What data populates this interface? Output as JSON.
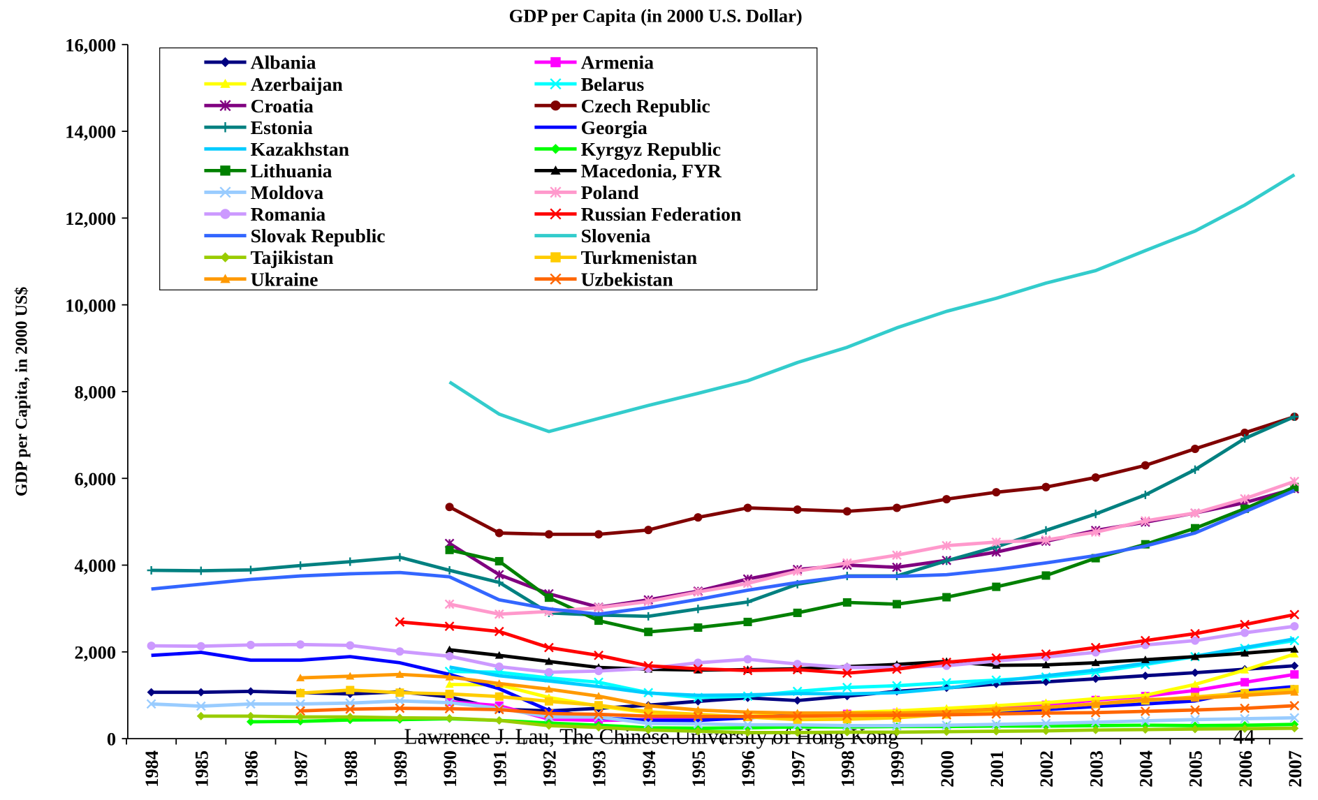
{
  "chart_data": {
    "type": "line",
    "title": "GDP per Capita (in 2000 U.S. Dollar)",
    "y_label": "GDP per Capita, in 2000 US$",
    "categories": [
      "1984",
      "1985",
      "1986",
      "1987",
      "1988",
      "1989",
      "1990",
      "1991",
      "1992",
      "1993",
      "1994",
      "1995",
      "1996",
      "1997",
      "1998",
      "1999",
      "2000",
      "2001",
      "2002",
      "2003",
      "2004",
      "2005",
      "2006",
      "2007"
    ],
    "ylim": [
      0,
      16000
    ],
    "yticks": [
      0,
      {
        "value": 2000,
        "label": "2,000"
      },
      {
        "value": 4000,
        "label": "4,000"
      },
      {
        "value": 6000,
        "label": "6,000"
      },
      {
        "value": 8000,
        "label": "8,000"
      },
      {
        "value": 10000,
        "label": "10,000"
      },
      {
        "value": 12000,
        "label": "12,000"
      },
      {
        "value": 14000,
        "label": "14,000"
      },
      {
        "value": 16000,
        "label": "16,000"
      }
    ],
    "grid": false,
    "legend": "top-left",
    "series": [
      {
        "name": "Albania",
        "color": "#000080",
        "marker": "diamond",
        "values": [
          1070,
          1070,
          1090,
          1060,
          1030,
          1080,
          960,
          680,
          640,
          700,
          770,
          860,
          940,
          880,
          980,
          1090,
          1170,
          1260,
          1310,
          1380,
          1450,
          1520,
          1600,
          1680
        ]
      },
      {
        "name": "Armenia",
        "color": "#ff00ff",
        "marker": "square",
        "values": [
          null,
          null,
          null,
          null,
          null,
          null,
          850,
          760,
          450,
          420,
          440,
          480,
          510,
          530,
          570,
          590,
          630,
          690,
          780,
          890,
          980,
          1110,
          1300,
          1480
        ]
      },
      {
        "name": "Azerbaijan",
        "color": "#ffff00",
        "marker": "triangle",
        "values": [
          null,
          null,
          null,
          null,
          null,
          null,
          1250,
          1240,
          950,
          750,
          600,
          520,
          520,
          550,
          600,
          640,
          700,
          760,
          830,
          920,
          1000,
          1250,
          1580,
          1950
        ]
      },
      {
        "name": "Belarus",
        "color": "#00ffff",
        "marker": "x",
        "values": [
          null,
          null,
          null,
          null,
          null,
          null,
          1550,
          1530,
          1400,
          1300,
          1060,
          950,
          980,
          1090,
          1180,
          1220,
          1290,
          1350,
          1420,
          1530,
          1710,
          1890,
          2080,
          2260
        ]
      },
      {
        "name": "Croatia",
        "color": "#800080",
        "marker": "star",
        "values": [
          null,
          null,
          null,
          null,
          null,
          null,
          4500,
          3780,
          3340,
          3030,
          3200,
          3400,
          3680,
          3900,
          4000,
          3950,
          4110,
          4300,
          4550,
          4800,
          4990,
          5200,
          5440,
          5760
        ]
      },
      {
        "name": "Czech Republic",
        "color": "#800000",
        "marker": "circle",
        "values": [
          null,
          null,
          null,
          null,
          null,
          null,
          5340,
          4740,
          4710,
          4710,
          4810,
          5100,
          5320,
          5280,
          5240,
          5320,
          5520,
          5680,
          5800,
          6020,
          6300,
          6680,
          7050,
          7420
        ]
      },
      {
        "name": "Estonia",
        "color": "#008080",
        "marker": "plus",
        "values": [
          3880,
          3870,
          3890,
          3990,
          4080,
          4180,
          3880,
          3600,
          2900,
          2850,
          2820,
          2990,
          3150,
          3560,
          3750,
          3750,
          4100,
          4420,
          4800,
          5180,
          5620,
          6200,
          6920,
          7420
        ]
      },
      {
        "name": "Georgia",
        "color": "#0000ff",
        "marker": "none",
        "values": [
          1920,
          1990,
          1810,
          1810,
          1890,
          1750,
          1480,
          1150,
          650,
          480,
          420,
          420,
          480,
          540,
          560,
          580,
          600,
          640,
          670,
          740,
          800,
          870,
          1100,
          1200
        ]
      },
      {
        "name": "Kazakhstan",
        "color": "#00ccff",
        "marker": "none",
        "values": [
          null,
          null,
          null,
          null,
          null,
          null,
          1650,
          1450,
          1330,
          1200,
          1050,
          1000,
          1010,
          1040,
          1030,
          1060,
          1160,
          1320,
          1450,
          1580,
          1740,
          1900,
          2100,
          2300
        ]
      },
      {
        "name": "Kyrgyz Republic",
        "color": "#00ff00",
        "marker": "diamond",
        "values": [
          null,
          null,
          390,
          400,
          430,
          440,
          460,
          420,
          360,
          310,
          250,
          240,
          250,
          270,
          270,
          280,
          280,
          290,
          290,
          300,
          310,
          300,
          310,
          330
        ]
      },
      {
        "name": "Lithuania",
        "color": "#008000",
        "marker": "square",
        "values": [
          null,
          null,
          null,
          null,
          null,
          null,
          4350,
          4090,
          3250,
          2720,
          2460,
          2560,
          2690,
          2900,
          3140,
          3100,
          3260,
          3500,
          3760,
          4160,
          4480,
          4850,
          5300,
          5800
        ]
      },
      {
        "name": "Macedonia, FYR",
        "color": "#000000",
        "marker": "triangle",
        "values": [
          null,
          null,
          null,
          null,
          null,
          null,
          2050,
          1920,
          1780,
          1640,
          1600,
          1580,
          1590,
          1610,
          1660,
          1710,
          1780,
          1690,
          1700,
          1750,
          1820,
          1890,
          1970,
          2060
        ]
      },
      {
        "name": "Moldova",
        "color": "#99ccff",
        "marker": "x",
        "values": [
          800,
          750,
          800,
          800,
          820,
          870,
          830,
          700,
          500,
          500,
          350,
          340,
          320,
          320,
          300,
          300,
          310,
          330,
          350,
          380,
          410,
          440,
          460,
          480
        ]
      },
      {
        "name": "Poland",
        "color": "#ff99cc",
        "marker": "star",
        "values": [
          null,
          null,
          null,
          null,
          null,
          null,
          3100,
          2870,
          2930,
          3020,
          3160,
          3380,
          3580,
          3860,
          4050,
          4230,
          4450,
          4530,
          4580,
          4760,
          5020,
          5200,
          5530,
          5930
        ]
      },
      {
        "name": "Romania",
        "color": "#cc99ff",
        "marker": "circle",
        "values": [
          2140,
          2130,
          2160,
          2170,
          2150,
          2010,
          1900,
          1660,
          1530,
          1560,
          1620,
          1750,
          1830,
          1720,
          1640,
          1640,
          1680,
          1790,
          1880,
          1990,
          2160,
          2260,
          2440,
          2590
        ]
      },
      {
        "name": "Russian Federation",
        "color": "#ff0000",
        "marker": "x",
        "values": [
          null,
          null,
          null,
          null,
          null,
          2690,
          2590,
          2470,
          2100,
          1920,
          1680,
          1610,
          1570,
          1590,
          1510,
          1600,
          1760,
          1860,
          1950,
          2100,
          2260,
          2420,
          2630,
          2860
        ]
      },
      {
        "name": "Slovak Republic",
        "color": "#3366ff",
        "marker": "none",
        "values": [
          3450,
          3560,
          3670,
          3750,
          3800,
          3830,
          3730,
          3200,
          2990,
          2870,
          3020,
          3210,
          3420,
          3600,
          3740,
          3740,
          3780,
          3900,
          4050,
          4220,
          4440,
          4740,
          5230,
          5720
        ]
      },
      {
        "name": "Slovenia",
        "color": "#33cccc",
        "marker": "none",
        "values": [
          null,
          null,
          null,
          null,
          null,
          null,
          8220,
          7480,
          7080,
          7380,
          7680,
          7960,
          8250,
          8670,
          9020,
          9470,
          9850,
          10150,
          10500,
          10790,
          11250,
          11700,
          12300,
          13000
        ]
      },
      {
        "name": "Tajikistan",
        "color": "#99cc00",
        "marker": "diamond",
        "values": [
          null,
          520,
          520,
          500,
          500,
          480,
          470,
          420,
          300,
          260,
          200,
          170,
          140,
          140,
          150,
          150,
          160,
          170,
          180,
          200,
          210,
          220,
          230,
          240
        ]
      },
      {
        "name": "Turkmenistan",
        "color": "#ffcc00",
        "marker": "square",
        "values": [
          null,
          null,
          null,
          1050,
          1120,
          1060,
          1030,
          970,
          860,
          770,
          620,
          560,
          500,
          440,
          450,
          480,
          560,
          650,
          720,
          800,
          880,
          960,
          1050,
          1140
        ]
      },
      {
        "name": "Ukraine",
        "color": "#ff9900",
        "marker": "triangle",
        "values": [
          null,
          null,
          null,
          1400,
          1440,
          1480,
          1420,
          1270,
          1140,
          980,
          760,
          660,
          610,
          590,
          590,
          590,
          620,
          680,
          720,
          800,
          900,
          930,
          1000,
          1070
        ]
      },
      {
        "name": "Uzbekistan",
        "color": "#ff6600",
        "marker": "x",
        "values": [
          null,
          null,
          null,
          640,
          680,
          700,
          690,
          670,
          580,
          560,
          520,
          510,
          510,
          520,
          530,
          540,
          550,
          570,
          590,
          600,
          630,
          660,
          700,
          760
        ]
      }
    ]
  },
  "footer": "Lawrence J. Lau, The Chinese University of Hong Kong",
  "page_number": "44"
}
